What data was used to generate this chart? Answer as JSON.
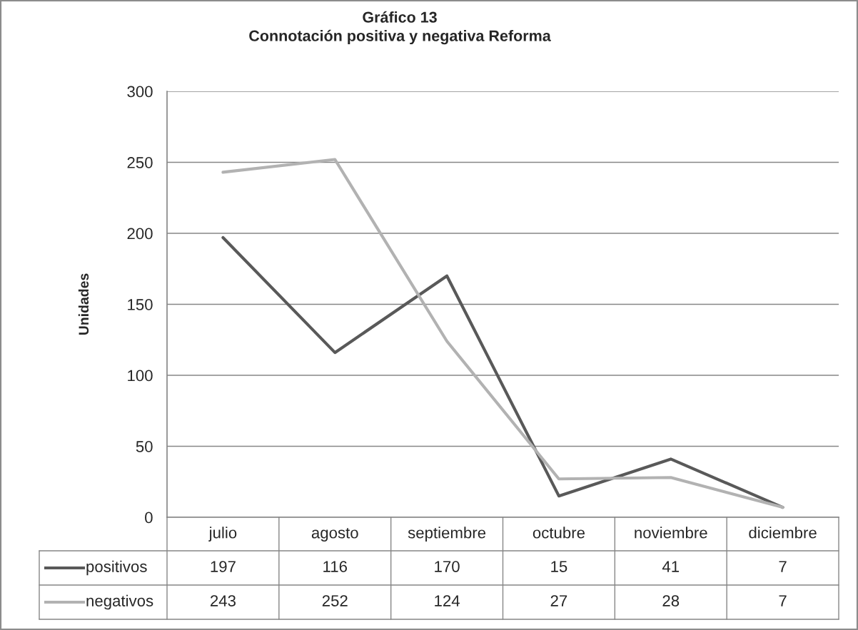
{
  "chart_data": {
    "type": "line",
    "title": "Gráfico 13",
    "subtitle": "Connotación positiva y negativa Reforma",
    "ylabel": "Unidades",
    "categories": [
      "julio",
      "agosto",
      "septiembre",
      "octubre",
      "noviembre",
      "diciembre"
    ],
    "series": [
      {
        "name": "positivos",
        "color": "#595959",
        "values": [
          197,
          116,
          170,
          15,
          41,
          7
        ]
      },
      {
        "name": "negativos",
        "color": "#b2b2b2",
        "values": [
          243,
          252,
          124,
          27,
          28,
          7
        ]
      }
    ],
    "ylim": [
      0,
      300
    ],
    "yticks": [
      0,
      50,
      100,
      150,
      200,
      250,
      300
    ],
    "grid": "y",
    "legend": "bottom",
    "data_labels": true
  }
}
